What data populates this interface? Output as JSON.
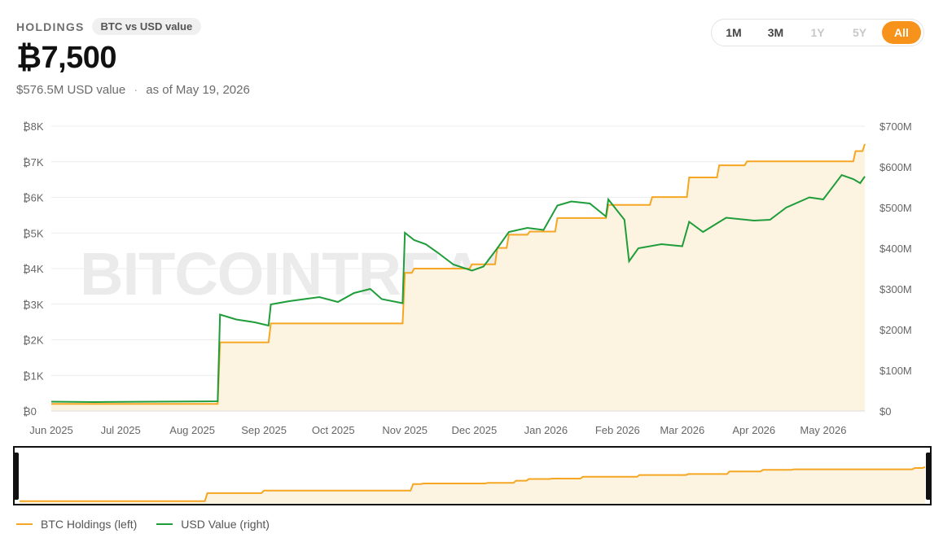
{
  "header": {
    "section_label": "HOLDINGS",
    "toggle_pill": "BTC vs USD value",
    "big_value": "₿7,500",
    "usd_value": "$576.5M USD value",
    "separator": "·",
    "as_of": "as of May 19, 2026"
  },
  "range_buttons": [
    {
      "label": "1M",
      "state": "enabled"
    },
    {
      "label": "3M",
      "state": "enabled"
    },
    {
      "label": "1Y",
      "state": "disabled"
    },
    {
      "label": "5Y",
      "state": "disabled"
    },
    {
      "label": "All",
      "state": "active"
    }
  ],
  "watermark": "BITCOINTREASURIES.NET",
  "colors": {
    "btc_line": "#f5a623",
    "btc_fill": "#fdf3e1",
    "usd_line": "#1f9d3a",
    "accent": "#f7931a"
  },
  "legend": [
    {
      "label": "BTC Holdings (left)",
      "color": "#f5a623"
    },
    {
      "label": "USD Value (right)",
      "color": "#1f9d3a"
    }
  ],
  "chart_data": {
    "type": "line",
    "title": "",
    "x_type": "date",
    "x_tick_labels": [
      "Jun 2025",
      "Jul 2025",
      "Aug 2025",
      "Sep 2025",
      "Oct 2025",
      "Nov 2025",
      "Dec 2025",
      "Jan 2026",
      "Feb 2026",
      "Mar 2026",
      "Apr 2026",
      "May 2026"
    ],
    "xlim": [
      "2025-06-01",
      "2026-05-19"
    ],
    "y_left": {
      "ticks": [
        "₿0",
        "₿1K",
        "₿2K",
        "₿3K",
        "₿4K",
        "₿5K",
        "₿6K",
        "₿7K",
        "₿8K"
      ],
      "ylim": [
        0,
        8000
      ]
    },
    "y_right": {
      "ticks": [
        "$0",
        "$100M",
        "$200M",
        "$300M",
        "$400M",
        "$500M",
        "$600M",
        "$700M"
      ],
      "ylim": [
        0,
        700
      ]
    },
    "grid": true,
    "legend_position": "bottom-left",
    "series": [
      {
        "name": "BTC Holdings (left)",
        "axis": "left",
        "style": "step-area",
        "points": [
          [
            "2025-06-01",
            200
          ],
          [
            "2025-08-12",
            200
          ],
          [
            "2025-08-13",
            1930
          ],
          [
            "2025-09-03",
            1930
          ],
          [
            "2025-09-04",
            2460
          ],
          [
            "2025-10-31",
            2460
          ],
          [
            "2025-11-01",
            3880
          ],
          [
            "2025-11-04",
            3880
          ],
          [
            "2025-11-05",
            4000
          ],
          [
            "2025-11-29",
            4000
          ],
          [
            "2025-11-30",
            4120
          ],
          [
            "2025-12-10",
            4120
          ],
          [
            "2025-12-11",
            4580
          ],
          [
            "2025-12-15",
            4580
          ],
          [
            "2025-12-16",
            4950
          ],
          [
            "2025-12-24",
            4950
          ],
          [
            "2025-12-25",
            5040
          ],
          [
            "2026-01-05",
            5040
          ],
          [
            "2026-01-06",
            5420
          ],
          [
            "2026-01-27",
            5420
          ],
          [
            "2026-01-28",
            5790
          ],
          [
            "2026-02-15",
            5790
          ],
          [
            "2026-02-16",
            6010
          ],
          [
            "2026-03-03",
            6010
          ],
          [
            "2026-03-04",
            6560
          ],
          [
            "2026-03-16",
            6560
          ],
          [
            "2026-03-17",
            6900
          ],
          [
            "2026-03-28",
            6900
          ],
          [
            "2026-03-29",
            7010
          ],
          [
            "2026-05-14",
            7010
          ],
          [
            "2026-05-15",
            7300
          ],
          [
            "2026-05-18",
            7300
          ],
          [
            "2026-05-19",
            7500
          ]
        ]
      },
      {
        "name": "USD Value (right)",
        "axis": "right",
        "style": "line",
        "points": [
          [
            "2025-06-01",
            23
          ],
          [
            "2025-06-20",
            22
          ],
          [
            "2025-07-15",
            23
          ],
          [
            "2025-08-12",
            24
          ],
          [
            "2025-08-13",
            237
          ],
          [
            "2025-08-20",
            225
          ],
          [
            "2025-08-28",
            218
          ],
          [
            "2025-09-03",
            210
          ],
          [
            "2025-09-04",
            262
          ],
          [
            "2025-09-12",
            270
          ],
          [
            "2025-09-25",
            280
          ],
          [
            "2025-10-03",
            268
          ],
          [
            "2025-10-10",
            290
          ],
          [
            "2025-10-17",
            300
          ],
          [
            "2025-10-22",
            275
          ],
          [
            "2025-10-31",
            265
          ],
          [
            "2025-11-01",
            438
          ],
          [
            "2025-11-05",
            420
          ],
          [
            "2025-11-10",
            410
          ],
          [
            "2025-11-15",
            390
          ],
          [
            "2025-11-22",
            360
          ],
          [
            "2025-11-30",
            345
          ],
          [
            "2025-12-05",
            355
          ],
          [
            "2025-12-11",
            400
          ],
          [
            "2025-12-16",
            440
          ],
          [
            "2025-12-24",
            450
          ],
          [
            "2025-12-31",
            445
          ],
          [
            "2026-01-06",
            505
          ],
          [
            "2026-01-12",
            515
          ],
          [
            "2026-01-20",
            510
          ],
          [
            "2026-01-27",
            478
          ],
          [
            "2026-01-28",
            520
          ],
          [
            "2026-02-04",
            470
          ],
          [
            "2026-02-06",
            368
          ],
          [
            "2026-02-10",
            400
          ],
          [
            "2026-02-20",
            410
          ],
          [
            "2026-03-01",
            405
          ],
          [
            "2026-03-04",
            465
          ],
          [
            "2026-03-10",
            440
          ],
          [
            "2026-03-20",
            475
          ],
          [
            "2026-04-01",
            468
          ],
          [
            "2026-04-08",
            470
          ],
          [
            "2026-04-15",
            500
          ],
          [
            "2026-04-25",
            525
          ],
          [
            "2026-05-01",
            520
          ],
          [
            "2026-05-09",
            580
          ],
          [
            "2026-05-14",
            570
          ],
          [
            "2026-05-17",
            560
          ],
          [
            "2026-05-19",
            576.5
          ]
        ]
      }
    ]
  }
}
